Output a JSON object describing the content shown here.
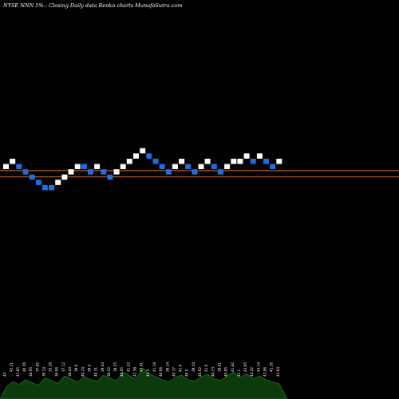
{
  "header": {
    "title": "NYSE NNN 5%-- Closing Daily data Renko charts MunafaSutra.com"
  },
  "colors": {
    "background": "#000000",
    "up_brick": "#ffffff",
    "down_brick": "#1e6fe0",
    "reference_line": "#c86a1e",
    "volume_fill": "#0d3a0d",
    "volume_stroke": "#1f7a1f"
  },
  "chart_data": {
    "type": "renko",
    "title": "NYSE NNN 5%-- Closing Daily data Renko charts MunafaSutra.com",
    "xlabel": "",
    "ylabel": "",
    "brick_levels": [
      5,
      6,
      5,
      4,
      3,
      2,
      1,
      1,
      2,
      3,
      4,
      5,
      5,
      4,
      5,
      4,
      3,
      4,
      5,
      6,
      7,
      8,
      7,
      6,
      5,
      4,
      5,
      6,
      5,
      4,
      5,
      6,
      5,
      4,
      5,
      6,
      6,
      7,
      6,
      7,
      6,
      5,
      6
    ],
    "brick_directions": [
      "up",
      "up",
      "down",
      "down",
      "down",
      "down",
      "down",
      "down",
      "up",
      "up",
      "up",
      "up",
      "down",
      "down",
      "up",
      "down",
      "down",
      "up",
      "up",
      "up",
      "up",
      "up",
      "down",
      "down",
      "down",
      "down",
      "up",
      "up",
      "down",
      "down",
      "up",
      "up",
      "down",
      "down",
      "up",
      "up",
      "up",
      "up",
      "down",
      "up",
      "down",
      "down",
      "up"
    ],
    "reference_lines": [
      4.72,
      3.55
    ],
    "volume_labels": [
      "44",
      "42.21",
      "41.85",
      "40.56",
      "38.95",
      "37.85",
      "36.14",
      "35.26",
      "36.04",
      "37.12",
      "38.44",
      "39.6",
      "40.24",
      "39.5",
      "40.31",
      "39.44",
      "38.52",
      "39.55",
      "40.65",
      "41.52",
      "42.38",
      "43.41",
      "42.3",
      "41.18",
      "40.06",
      "39.14",
      "40.37",
      "41.4",
      "40.5",
      "39.54",
      "40.62",
      "41.6",
      "40.73",
      "39.81",
      "40.85",
      "41.82",
      "42.1",
      "43.05",
      "42.22",
      "43.14",
      "42.06",
      "41.16",
      "42.04"
    ],
    "volume_values": [
      30,
      45,
      38,
      50,
      42,
      36,
      55,
      48,
      40,
      60,
      52,
      44,
      58,
      50,
      46,
      62,
      54,
      48,
      70,
      60,
      52,
      80,
      66,
      58,
      50,
      44,
      56,
      62,
      50,
      46,
      58,
      64,
      52,
      48,
      60,
      70,
      56,
      66,
      52,
      60,
      50,
      44,
      40
    ]
  }
}
